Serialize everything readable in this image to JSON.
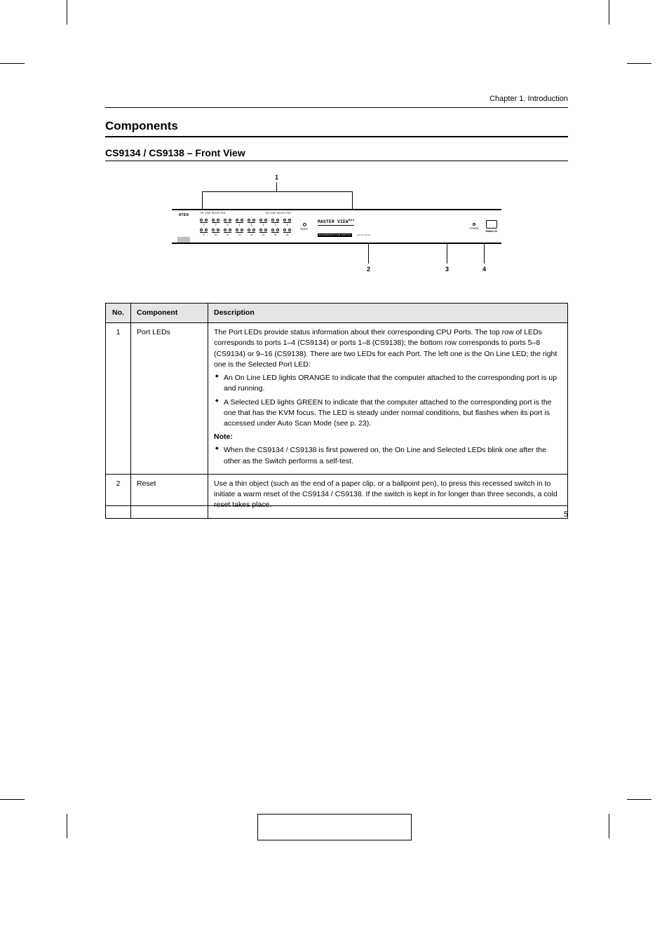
{
  "header_chapter": "Chapter 1. Introduction",
  "section_title": "Components",
  "subsection_title": "CS9134 / CS9138 – Front View",
  "diagram": {
    "callout_1": "1",
    "callout_2": "2",
    "callout_3": "3",
    "callout_4": "4",
    "brand": "ATEN",
    "section_label_left": "ON LINE  SELECTED",
    "section_label_right": "ON LINE  SELECTED",
    "reset_label": "RESET",
    "mv_title": "MASTER VIEW",
    "mv_title_suffix": "MAX",
    "mv_sub": "RACKMOUNT KVM SWITCH",
    "mv_model": "xxx-xx / xxx-xx",
    "power_label": "POWER",
    "station_label": "Station ID",
    "port_row1": [
      "1",
      "2",
      "3",
      "4",
      "5",
      "6",
      "7",
      "8"
    ],
    "port_row2": [
      "9",
      "10",
      "11",
      "12",
      "13",
      "14",
      "15",
      "16"
    ]
  },
  "table": {
    "head": {
      "no": "No.",
      "component": "Component",
      "description": "Description"
    },
    "rows": [
      {
        "no": "1",
        "component": "Port LEDs",
        "desc_lines": [
          "The Port LEDs provide status information about their corresponding CPU Ports. The top row of LEDs corresponds to ports 1–4 (CS9134) or ports 1–8 (CS9138); the bottom row corresponds to ports 5–8 (CS9134) or 9–16 (CS9138). There are two LEDs for each Port. The left one is the On Line LED; the right one is the Selected Port LED:"
        ],
        "bullets": [
          "An On Line LED lights ORANGE to indicate that the computer attached to the corresponding port is up and running.",
          "A Selected LED lights GREEN to indicate that the computer attached to the corresponding port is the one that has the KVM focus. The LED is steady under normal conditions, but flashes when its port is accessed under Auto Scan Mode (see p. 23)."
        ],
        "bullets_after": [
          "When the CS9134 / CS9138 is first powered on, the On Line and Selected LEDs blink one after the other as the Switch performs a self-test."
        ],
        "note": "Note:"
      },
      {
        "no": "2",
        "component": "Reset",
        "desc_lines": [
          "Use a thin object (such as the end of a paper clip, or a ballpoint pen), to press this recessed switch in to initiate a warm reset of the CS9134 / CS9138. If the switch is kept in for longer than three seconds, a cold reset takes place."
        ],
        "bullets": [],
        "bullets_after": [],
        "note": ""
      }
    ]
  },
  "page_number": "5",
  "colors": {
    "border": "#000000",
    "header_bg": "#e5e5e5",
    "bg": "#ffffff"
  }
}
